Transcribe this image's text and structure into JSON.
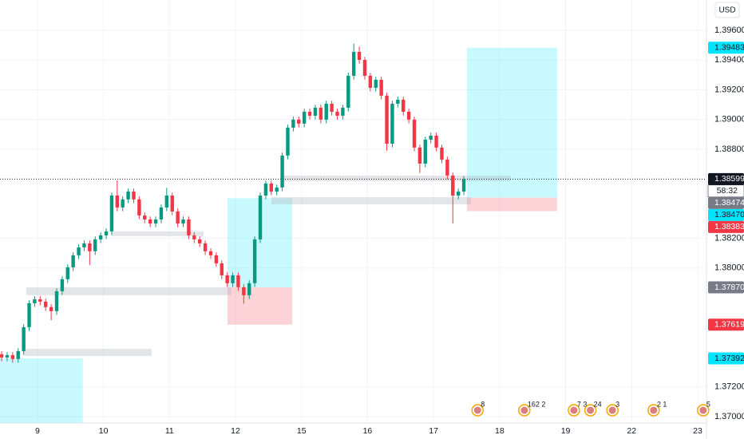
{
  "chart_data": {
    "type": "candlestick",
    "currency": "USD",
    "up_color": "#089981",
    "down_color": "#f23645",
    "x": [
      -13,
      -11,
      -9,
      -7,
      -5,
      -3,
      -1,
      1,
      3,
      5,
      7,
      9,
      11,
      13,
      15,
      17,
      19,
      21,
      23,
      25,
      27,
      29,
      31,
      33,
      35,
      37,
      39,
      41,
      43,
      45,
      47,
      49,
      51,
      53,
      55,
      57,
      59,
      61,
      63,
      65,
      67,
      69,
      71,
      73,
      75,
      77,
      79,
      81,
      83,
      85,
      87,
      89,
      91,
      93,
      95,
      97,
      99,
      101,
      103,
      105,
      107,
      109,
      111,
      113,
      115,
      117,
      119,
      121,
      123,
      125,
      127,
      129,
      131,
      133,
      135,
      137,
      139,
      141,
      143,
      145,
      147,
      149,
      151,
      153,
      155
    ],
    "open": [
      1.3742,
      1.37398,
      1.37414,
      1.37388,
      1.37441,
      1.37602,
      1.37763,
      1.3779,
      1.37774,
      1.37737,
      1.3771,
      1.37844,
      1.37925,
      1.38005,
      1.38086,
      1.38139,
      1.38166,
      1.38113,
      1.38193,
      1.3822,
      1.38247,
      1.38488,
      1.38408,
      1.38462,
      1.38515,
      1.38462,
      1.38354,
      1.38327,
      1.383,
      1.38327,
      1.38408,
      1.38488,
      1.38381,
      1.383,
      1.38327,
      1.3822,
      1.38193,
      1.38166,
      1.38113,
      1.38086,
      1.38032,
      1.37951,
      1.37898,
      1.37951,
      1.37871,
      1.37817,
      1.37898,
      1.38193,
      1.38488,
      1.38569,
      1.38515,
      1.38542,
      1.38757,
      1.38945,
      1.38999,
      1.38972,
      1.39052,
      1.39025,
      1.39079,
      1.38999,
      1.39106,
      1.39052,
      1.39025,
      1.39079,
      1.39294,
      1.39455,
      1.39401,
      1.39294,
      1.39213,
      1.39267,
      1.3916,
      1.38837,
      1.39106,
      1.39133,
      1.39052,
      1.38999,
      1.38811,
      1.38703,
      1.38864,
      1.38891,
      1.38811,
      1.3873,
      1.38623,
      1.38488,
      1.38515
    ],
    "high": [
      1.3744,
      1.37434,
      1.37434,
      1.37461,
      1.37622,
      1.37783,
      1.3781,
      1.3781,
      1.37794,
      1.37757,
      1.37864,
      1.37945,
      1.38025,
      1.38106,
      1.38159,
      1.38186,
      1.38186,
      1.38213,
      1.3824,
      1.38267,
      1.38508,
      1.3859,
      1.38482,
      1.38535,
      1.38535,
      1.38482,
      1.38374,
      1.38347,
      1.38347,
      1.38428,
      1.3854,
      1.38508,
      1.38401,
      1.38347,
      1.38347,
      1.3824,
      1.38213,
      1.38186,
      1.38133,
      1.38106,
      1.38052,
      1.37971,
      1.37971,
      1.37971,
      1.37891,
      1.37918,
      1.38213,
      1.38508,
      1.38589,
      1.38589,
      1.38562,
      1.38777,
      1.38965,
      1.39019,
      1.39019,
      1.39072,
      1.39072,
      1.39099,
      1.39099,
      1.39126,
      1.39126,
      1.39072,
      1.39099,
      1.39314,
      1.3951,
      1.3949,
      1.39421,
      1.39314,
      1.39287,
      1.39287,
      1.3918,
      1.39126,
      1.39153,
      1.39153,
      1.39072,
      1.39019,
      1.38831,
      1.38884,
      1.38911,
      1.38911,
      1.38831,
      1.3875,
      1.38643,
      1.38535,
      1.38619
    ],
    "low": [
      1.37373,
      1.37373,
      1.37363,
      1.37363,
      1.37416,
      1.37577,
      1.37738,
      1.37749,
      1.37712,
      1.3765,
      1.37685,
      1.37819,
      1.379,
      1.3798,
      1.38061,
      1.38114,
      1.3802,
      1.38088,
      1.38168,
      1.38195,
      1.38222,
      1.38383,
      1.38383,
      1.38437,
      1.38437,
      1.38329,
      1.38302,
      1.38275,
      1.38275,
      1.38302,
      1.38383,
      1.38356,
      1.38275,
      1.38275,
      1.38195,
      1.38168,
      1.38141,
      1.38088,
      1.38061,
      1.38007,
      1.37926,
      1.37873,
      1.37873,
      1.37846,
      1.3776,
      1.37792,
      1.37873,
      1.38168,
      1.38463,
      1.3849,
      1.3849,
      1.38517,
      1.38732,
      1.3892,
      1.38947,
      1.38947,
      1.39,
      1.39,
      1.38974,
      1.38974,
      1.39027,
      1.39,
      1.39,
      1.39054,
      1.39269,
      1.39376,
      1.39269,
      1.39188,
      1.39188,
      1.39135,
      1.3879,
      1.38812,
      1.39081,
      1.39027,
      1.38974,
      1.38786,
      1.3864,
      1.38678,
      1.38839,
      1.38786,
      1.38705,
      1.38598,
      1.383,
      1.38463,
      1.3849
    ],
    "close": [
      1.37398,
      1.37414,
      1.37388,
      1.37441,
      1.37602,
      1.37763,
      1.3779,
      1.37774,
      1.37737,
      1.3771,
      1.37844,
      1.37925,
      1.38005,
      1.38086,
      1.38139,
      1.38166,
      1.38113,
      1.38193,
      1.3822,
      1.38247,
      1.38488,
      1.38408,
      1.38462,
      1.38515,
      1.38462,
      1.38354,
      1.38327,
      1.383,
      1.38327,
      1.38408,
      1.38488,
      1.38381,
      1.383,
      1.38327,
      1.3822,
      1.38193,
      1.38166,
      1.38113,
      1.38086,
      1.38032,
      1.37951,
      1.37898,
      1.37951,
      1.37871,
      1.37817,
      1.37898,
      1.38193,
      1.38488,
      1.38569,
      1.38515,
      1.38542,
      1.38757,
      1.38945,
      1.38999,
      1.38972,
      1.39052,
      1.39025,
      1.39079,
      1.38999,
      1.39106,
      1.39052,
      1.39025,
      1.39079,
      1.39294,
      1.39455,
      1.39401,
      1.39294,
      1.39213,
      1.39267,
      1.3916,
      1.38837,
      1.39106,
      1.39133,
      1.39052,
      1.38999,
      1.38811,
      1.38703,
      1.38864,
      1.38891,
      1.38811,
      1.3873,
      1.38623,
      1.38488,
      1.38515,
      1.38599
    ],
    "xlim": [
      -13.6,
      243.2
    ],
    "xticks": [
      {
        "value": 0,
        "label": "9"
      },
      {
        "value": 24,
        "label": "10"
      },
      {
        "value": 48,
        "label": "11"
      },
      {
        "value": 72,
        "label": "12"
      },
      {
        "value": 96,
        "label": "15"
      },
      {
        "value": 120,
        "label": "16"
      },
      {
        "value": 144,
        "label": "17"
      },
      {
        "value": 168,
        "label": "18"
      },
      {
        "value": 192,
        "label": "19"
      },
      {
        "value": 216,
        "label": "22"
      },
      {
        "value": 240,
        "label": "23"
      }
    ],
    "ylim": [
      1.36957,
      1.39804
    ],
    "yticks": [
      {
        "value": 1.396,
        "label": "1.39600"
      },
      {
        "value": 1.394,
        "label": "1.39400"
      },
      {
        "value": 1.392,
        "label": "1.39200"
      },
      {
        "value": 1.39,
        "label": "1.39000"
      },
      {
        "value": 1.388,
        "label": "1.38800"
      },
      {
        "value": 1.382,
        "label": "1.38200"
      },
      {
        "value": 1.38,
        "label": "1.38000"
      },
      {
        "value": 1.372,
        "label": "1.37200"
      },
      {
        "value": 1.37,
        "label": "1.37000"
      }
    ],
    "grid": true,
    "last_price": {
      "value": 1.38599,
      "label": "1.38599"
    },
    "countdown": "58:32",
    "price_labels": [
      {
        "value": 1.39483,
        "label": "1.39483",
        "color": "#00e5ff"
      },
      {
        "value": 1.38474,
        "label": "1.38474",
        "color": "#787b86"
      },
      {
        "value": 1.3847,
        "label": "1.38470",
        "color": "#00e5ff"
      },
      {
        "value": 1.38383,
        "label": "1.38383",
        "color": "#f23645"
      },
      {
        "value": 1.3787,
        "label": "1.37870",
        "color": "#787b86"
      },
      {
        "value": 1.37619,
        "label": "1.37619",
        "color": "#f23645"
      },
      {
        "value": 1.37392,
        "label": "1.37392",
        "color": "#00e5ff"
      }
    ],
    "boxes": [
      {
        "x1": -13.6,
        "x2": 16.5,
        "y1": 1.37392,
        "y2": 1.36957,
        "color": "#00e5ff"
      },
      {
        "x1": 69.1,
        "x2": 92.6,
        "y1": 1.3847,
        "y2": 1.3787,
        "color": "#00e5ff"
      },
      {
        "x1": 69.1,
        "x2": 92.6,
        "y1": 1.3787,
        "y2": 1.37619,
        "color": "#f23645"
      },
      {
        "x1": 156.1,
        "x2": 188.9,
        "y1": 1.39483,
        "y2": 1.38474,
        "color": "#00e5ff"
      },
      {
        "x1": 156.1,
        "x2": 188.9,
        "y1": 1.38474,
        "y2": 1.38383,
        "color": "#f23645"
      }
    ],
    "zones": [
      {
        "x1": -4.1,
        "x2": 70.5,
        "y1": 1.3787,
        "y2": 1.37817
      },
      {
        "x1": -4.9,
        "x2": 41.5,
        "y1": 1.37456,
        "y2": 1.37408
      },
      {
        "x1": 27.0,
        "x2": 60.4,
        "y1": 1.38247,
        "y2": 1.38215
      },
      {
        "x1": 85.0,
        "x2": 157.6,
        "y1": 1.38477,
        "y2": 1.38429
      },
      {
        "x1": 89.4,
        "x2": 172.1,
        "y1": 1.38622,
        "y2": 1.38585
      }
    ],
    "events": [
      {
        "x": 160,
        "label": "8"
      },
      {
        "x": 177,
        "label": "162 2"
      },
      {
        "x": 195,
        "label": "7 3"
      },
      {
        "x": 201,
        "label": "24"
      },
      {
        "x": 209,
        "label": "3"
      },
      {
        "x": 224,
        "label": "2 1"
      },
      {
        "x": 242,
        "label": "5"
      }
    ]
  }
}
